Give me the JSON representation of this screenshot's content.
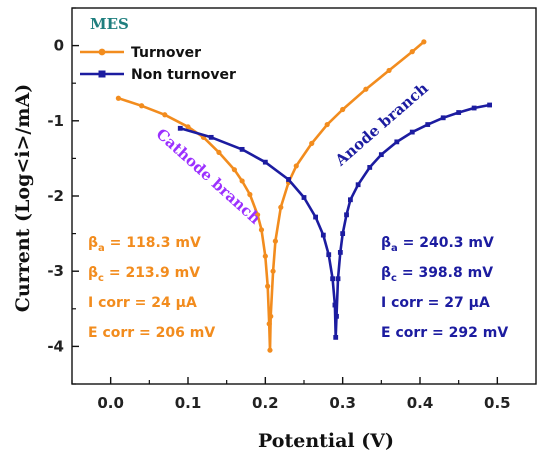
{
  "chart_data": {
    "type": "line",
    "title": "MES",
    "xlabel": "Potential (V)",
    "ylabel": "Current (Log<i>/mA)",
    "xlim": [
      -0.05,
      0.55
    ],
    "ylim": [
      -4.5,
      0.5
    ],
    "x_ticks": [
      0.0,
      0.1,
      0.2,
      0.3,
      0.4,
      0.5
    ],
    "x_tick_labels": [
      "0.0",
      "0.1",
      "0.2",
      "0.3",
      "0.4",
      "0.5"
    ],
    "y_ticks": [
      0,
      -1,
      -2,
      -3,
      -4
    ],
    "y_tick_labels": [
      "0",
      "-1",
      "-2",
      "-3",
      "-4"
    ],
    "legend_position": "top-left",
    "series": [
      {
        "name": "Turnover",
        "color": "#F28C1E",
        "marker": "circle",
        "x": [
          0.01,
          0.04,
          0.07,
          0.1,
          0.12,
          0.14,
          0.16,
          0.17,
          0.18,
          0.19,
          0.195,
          0.2,
          0.203,
          0.205,
          0.206,
          0.207,
          0.21,
          0.213,
          0.22,
          0.23,
          0.24,
          0.26,
          0.28,
          0.3,
          0.33,
          0.36,
          0.39,
          0.405
        ],
        "y": [
          -0.7,
          -0.8,
          -0.92,
          -1.08,
          -1.22,
          -1.42,
          -1.65,
          -1.8,
          -1.98,
          -2.25,
          -2.45,
          -2.8,
          -3.2,
          -3.7,
          -4.05,
          -3.6,
          -3.0,
          -2.6,
          -2.15,
          -1.82,
          -1.6,
          -1.3,
          -1.05,
          -0.85,
          -0.58,
          -0.33,
          -0.08,
          0.05
        ]
      },
      {
        "name": "Non turnover",
        "color": "#1C1CA0",
        "marker": "square",
        "x": [
          0.09,
          0.13,
          0.17,
          0.2,
          0.23,
          0.25,
          0.265,
          0.275,
          0.282,
          0.287,
          0.29,
          0.291,
          0.292,
          0.294,
          0.297,
          0.3,
          0.305,
          0.31,
          0.32,
          0.335,
          0.35,
          0.37,
          0.39,
          0.41,
          0.43,
          0.45,
          0.47,
          0.49
        ],
        "y": [
          -1.1,
          -1.22,
          -1.38,
          -1.55,
          -1.78,
          -2.02,
          -2.28,
          -2.52,
          -2.78,
          -3.1,
          -3.45,
          -3.88,
          -3.6,
          -3.1,
          -2.75,
          -2.5,
          -2.25,
          -2.05,
          -1.85,
          -1.62,
          -1.45,
          -1.28,
          -1.15,
          -1.05,
          -0.96,
          -0.89,
          -0.83,
          -0.79
        ]
      }
    ],
    "annotations": {
      "cathode": "Cathode branch",
      "anode": "Anode branch",
      "turnover_params": [
        {
          "main": "β",
          "sub": "a",
          "rest": " = 118.3 mV"
        },
        {
          "main": "β",
          "sub": "c",
          "rest": " = 213.9 mV"
        },
        {
          "main": "I corr = 24 μA",
          "sub": "",
          "rest": ""
        },
        {
          "main": "E corr = 206 mV",
          "sub": "",
          "rest": ""
        }
      ],
      "nonturnover_params": [
        {
          "main": "β",
          "sub": "a",
          "rest": " = 240.3 mV"
        },
        {
          "main": "β",
          "sub": "c",
          "rest": " = 398.8 mV"
        },
        {
          "main": "I corr = 27 μA",
          "sub": "",
          "rest": ""
        },
        {
          "main": "E corr = 292 mV",
          "sub": "",
          "rest": ""
        }
      ]
    },
    "colors": {
      "title": "#1F7F7F",
      "cathode_label": "#9B30FF",
      "anode_label": "#1C1CA0"
    }
  }
}
